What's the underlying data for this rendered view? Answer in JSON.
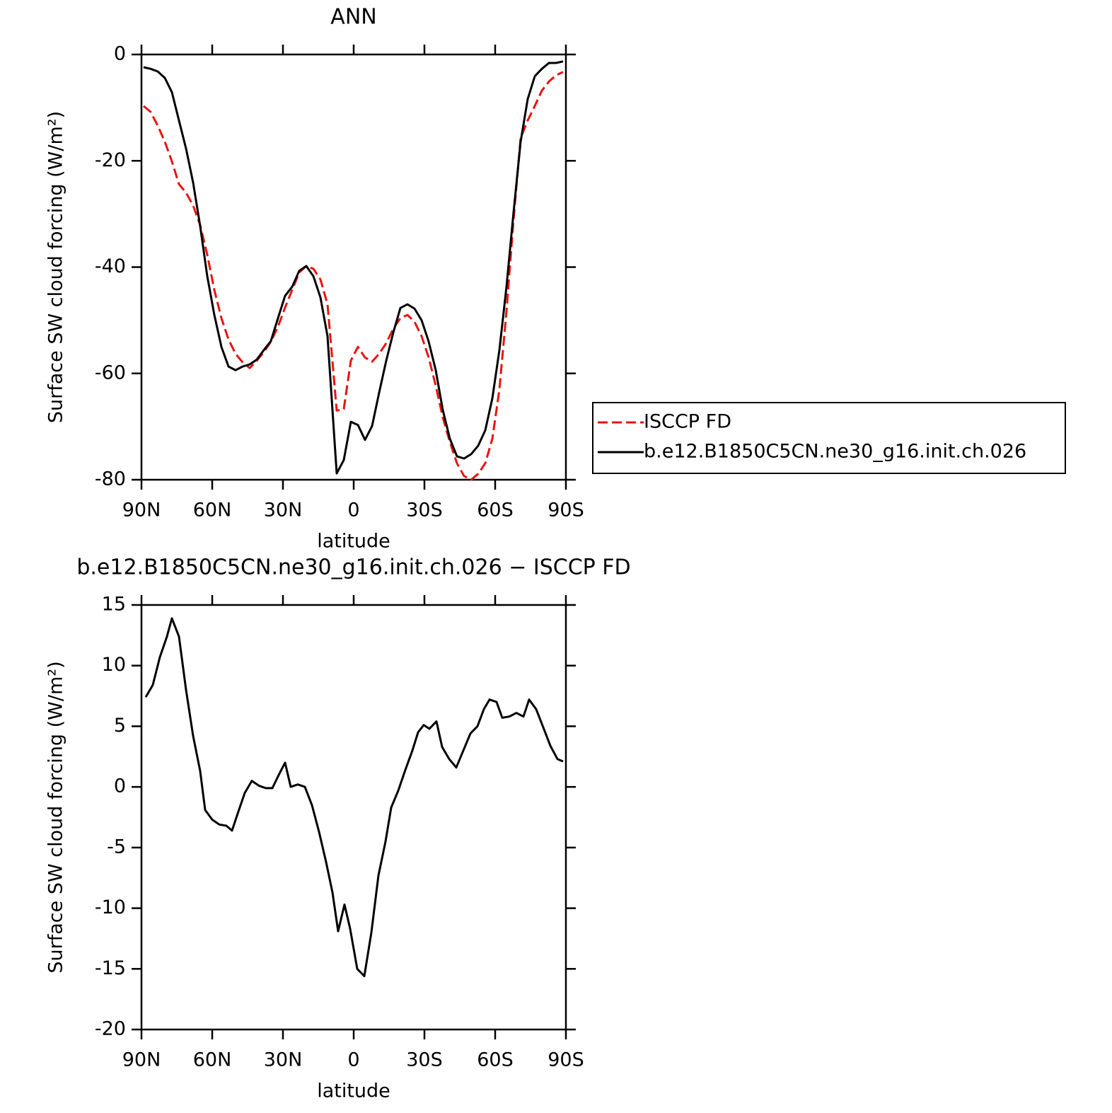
{
  "chart_data": [
    {
      "type": "line",
      "title": "ANN",
      "y_label": "Surface SW cloud forcing (W/m²)",
      "x_label": "latitude",
      "xlim": [
        90,
        -90
      ],
      "xticks": [
        {
          "value": 90,
          "label": "90N"
        },
        {
          "value": 60,
          "label": "60N"
        },
        {
          "value": 30,
          "label": "30N"
        },
        0,
        {
          "value": -30,
          "label": "30S"
        },
        {
          "value": -60,
          "label": "60S"
        },
        {
          "value": -90,
          "label": "90S"
        }
      ],
      "ylim": [
        -80,
        0
      ],
      "yticks": [
        0,
        -20,
        -40,
        -60,
        -80
      ],
      "legend": "right",
      "x": [
        89.1,
        86.1,
        83.1,
        80.1,
        77.1,
        74.1,
        71.1,
        68.1,
        65.1,
        62.1,
        59.1,
        56.1,
        53.1,
        50.1,
        47.1,
        44.1,
        41.1,
        38.1,
        35.1,
        32.1,
        29.1,
        26.1,
        23.1,
        20.1,
        17.1,
        14.1,
        11.1,
        7.2,
        4.2,
        1.2,
        -1.8,
        -4.8,
        -7.8,
        -10.8,
        -13.8,
        -16.8,
        -19.8,
        -22.8,
        -25.8,
        -28.8,
        -31.8,
        -34.8,
        -37.8,
        -40.8,
        -43.8,
        -46.8,
        -49.8,
        -52.8,
        -55.8,
        -58.8,
        -61.8,
        -64.8,
        -67.8,
        -70.8,
        -73.8,
        -76.8,
        -79.8,
        -82.8,
        -85.8,
        -88.8
      ],
      "series": [
        {
          "name": "ISCCP FD",
          "color": "#e8140f",
          "dashed": true,
          "values": [
            -9.7,
            -10.8,
            -13.4,
            -16.4,
            -20.1,
            -24.4,
            -26.0,
            -28.4,
            -32.1,
            -37.7,
            -44.3,
            -49.6,
            -53.6,
            -56.3,
            -57.9,
            -59.0,
            -57.6,
            -56.0,
            -54.0,
            -51.2,
            -47.6,
            -44.3,
            -41.0,
            -39.8,
            -40.3,
            -42.3,
            -47.0,
            -67.0,
            -66.7,
            -57.6,
            -55.0,
            -57.0,
            -57.8,
            -56.3,
            -54.3,
            -51.6,
            -49.6,
            -49.0,
            -50.3,
            -53.0,
            -57.0,
            -62.3,
            -68.3,
            -72.9,
            -76.9,
            -79.3,
            -80.0,
            -78.9,
            -76.9,
            -72.3,
            -63.0,
            -48.3,
            -31.0,
            -15.7,
            -12.4,
            -9.7,
            -6.8,
            -5.1,
            -3.9,
            -3.3
          ]
        },
        {
          "name": "b.e12.B1850C5CN.ne30_g16.init.ch.026",
          "color": "#000000",
          "dashed": false,
          "values": [
            -2.4,
            -2.7,
            -3.2,
            -4.4,
            -7.1,
            -12.4,
            -17.7,
            -24.1,
            -32.3,
            -41.7,
            -49.0,
            -55.0,
            -58.7,
            -59.4,
            -58.7,
            -58.3,
            -57.4,
            -55.6,
            -53.9,
            -49.6,
            -45.4,
            -43.7,
            -40.7,
            -39.8,
            -41.7,
            -45.7,
            -53.0,
            -78.8,
            -76.3,
            -69.1,
            -69.7,
            -72.5,
            -69.9,
            -63.6,
            -57.6,
            -52.3,
            -47.7,
            -47.0,
            -47.8,
            -50.0,
            -54.0,
            -59.4,
            -66.9,
            -72.3,
            -75.6,
            -76.0,
            -75.2,
            -73.6,
            -70.7,
            -64.7,
            -55.6,
            -43.7,
            -29.7,
            -16.4,
            -8.4,
            -4.1,
            -2.7,
            -1.6,
            -1.6,
            -1.3
          ]
        }
      ]
    },
    {
      "type": "line",
      "title": "b.e12.B1850C5CN.ne30_g16.init.ch.026 − ISCCP FD",
      "y_label": "Surface SW cloud forcing (W/m²)",
      "x_label": "latitude",
      "xlim": [
        90,
        -90
      ],
      "xticks": [
        {
          "value": 90,
          "label": "90N"
        },
        {
          "value": 60,
          "label": "60N"
        },
        {
          "value": 30,
          "label": "30N"
        },
        0,
        {
          "value": -30,
          "label": "30S"
        },
        {
          "value": -60,
          "label": "60S"
        },
        {
          "value": -90,
          "label": "90S"
        }
      ],
      "ylim": [
        -20,
        15
      ],
      "yticks": [
        15,
        10,
        5,
        0,
        -5,
        -10,
        -15,
        -20
      ],
      "color": "#000000",
      "x": [
        88.2,
        85.2,
        82.2,
        79.2,
        77.1,
        74.1,
        71.1,
        68.1,
        65.1,
        63.0,
        60.0,
        57.0,
        54.0,
        51.6,
        49.2,
        46.2,
        43.2,
        40.2,
        37.2,
        34.5,
        31.5,
        29.1,
        26.7,
        23.7,
        20.7,
        17.7,
        14.7,
        11.7,
        9.0,
        6.6,
        3.9,
        1.5,
        -1.5,
        -4.5,
        -7.5,
        -10.5,
        -13.5,
        -15.9,
        -18.9,
        -21.9,
        -24.9,
        -27.3,
        -29.7,
        -32.1,
        -35.1,
        -37.5,
        -40.5,
        -43.5,
        -46.5,
        -49.5,
        -52.5,
        -55.2,
        -57.6,
        -60.6,
        -63.0,
        -66.0,
        -69.0,
        -72.0,
        -74.4,
        -77.4,
        -80.4,
        -83.4,
        -86.4,
        -88.8
      ],
      "values": [
        7.4,
        8.4,
        10.7,
        12.4,
        13.9,
        12.4,
        8.0,
        4.2,
        1.3,
        -1.9,
        -2.7,
        -3.1,
        -3.2,
        -3.6,
        -2.2,
        -0.5,
        0.5,
        0.1,
        -0.1,
        -0.1,
        1.1,
        2.0,
        0.0,
        0.2,
        0.0,
        -1.5,
        -3.7,
        -6.2,
        -8.7,
        -11.9,
        -9.7,
        -11.7,
        -15.0,
        -15.6,
        -12.0,
        -7.3,
        -4.5,
        -1.7,
        -0.3,
        1.4,
        3.0,
        4.5,
        5.1,
        4.8,
        5.4,
        3.3,
        2.3,
        1.6,
        3.0,
        4.4,
        5.0,
        6.4,
        7.2,
        7.0,
        5.7,
        5.8,
        6.1,
        5.8,
        7.2,
        6.4,
        4.9,
        3.4,
        2.3,
        2.1
      ]
    }
  ]
}
